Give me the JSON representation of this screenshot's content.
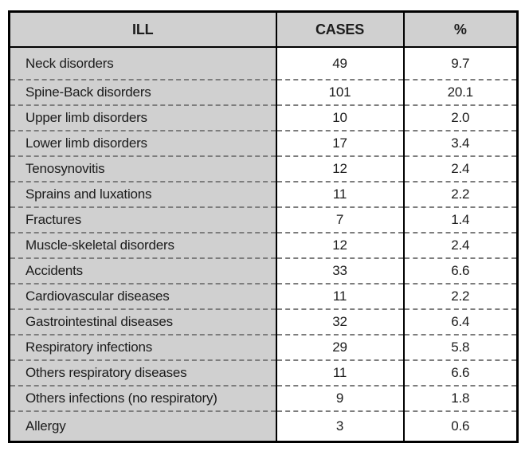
{
  "colors": {
    "cell-gray": "#d0d0d0",
    "dash-gray": "#7d7d7d",
    "border-black": "#000000",
    "text-black": "#1c1c1c"
  },
  "table": {
    "columns": [
      {
        "key": "ill",
        "label": "ILL"
      },
      {
        "key": "cases",
        "label": "CASES"
      },
      {
        "key": "pct",
        "label": "%"
      }
    ],
    "rows": [
      {
        "ill": "Neck disorders",
        "cases": "49",
        "pct": "9.7"
      },
      {
        "ill": "Spine-Back disorders",
        "cases": "101",
        "pct": "20.1"
      },
      {
        "ill": "Upper limb disorders",
        "cases": "10",
        "pct": "2.0"
      },
      {
        "ill": "Lower limb disorders",
        "cases": "17",
        "pct": "3.4"
      },
      {
        "ill": "Tenosynovitis",
        "cases": "12",
        "pct": "2.4"
      },
      {
        "ill": "Sprains and luxations",
        "cases": "11",
        "pct": "2.2"
      },
      {
        "ill": "Fractures",
        "cases": "7",
        "pct": "1.4"
      },
      {
        "ill": "Muscle-skeletal disorders",
        "cases": "12",
        "pct": "2.4"
      },
      {
        "ill": "Accidents",
        "cases": "33",
        "pct": "6.6"
      },
      {
        "ill": "Cardiovascular diseases",
        "cases": "11",
        "pct": "2.2"
      },
      {
        "ill": "Gastrointestinal diseases",
        "cases": "32",
        "pct": "6.4"
      },
      {
        "ill": "Respiratory infections",
        "cases": "29",
        "pct": "5.8"
      },
      {
        "ill": "Others respiratory diseases",
        "cases": "11",
        "pct": "6.6"
      },
      {
        "ill": "Others infections (no respiratory)",
        "cases": "9",
        "pct": "1.8"
      },
      {
        "ill": "Allergy",
        "cases": "3",
        "pct": "0.6"
      }
    ]
  },
  "chart_data": {
    "type": "table",
    "title": "",
    "categories": [
      "Neck disorders",
      "Spine-Back disorders",
      "Upper limb disorders",
      "Lower limb disorders",
      "Tenosynovitis",
      "Sprains and luxations",
      "Fractures",
      "Muscle-skeletal disorders",
      "Accidents",
      "Cardiovascular diseases",
      "Gastrointestinal diseases",
      "Respiratory infections",
      "Others respiratory diseases",
      "Others infections (no respiratory)",
      "Allergy"
    ],
    "series": [
      {
        "name": "CASES",
        "values": [
          49,
          101,
          10,
          17,
          12,
          11,
          7,
          12,
          33,
          11,
          32,
          29,
          11,
          9,
          3
        ]
      },
      {
        "name": "%",
        "values": [
          9.7,
          20.1,
          2.0,
          3.4,
          2.4,
          2.2,
          1.4,
          2.4,
          6.6,
          2.2,
          6.4,
          5.8,
          6.6,
          1.8,
          0.6
        ]
      }
    ]
  }
}
